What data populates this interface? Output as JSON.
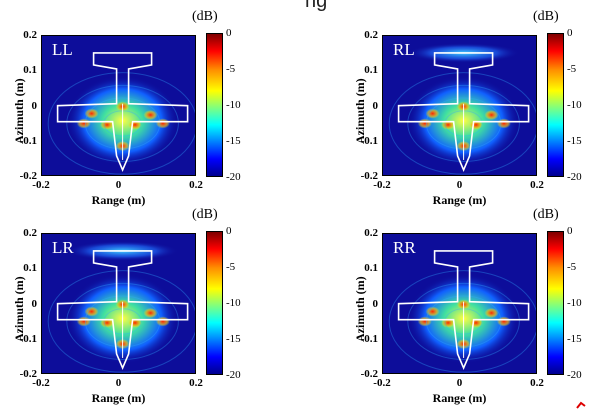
{
  "top_fragment": "ng",
  "chart_data": [
    {
      "type": "heatmap",
      "title": "LL",
      "xlabel": "Range (m)",
      "ylabel": "Azimuth (m)",
      "xlim": [
        -0.2,
        0.2
      ],
      "ylim": [
        -0.2,
        0.2
      ],
      "x_ticks": [
        "-0.2",
        "0",
        "0.2"
      ],
      "y_ticks": [
        "0.2",
        "0.1",
        "0",
        "-0.1",
        "-0.2"
      ],
      "colorbar": {
        "unit": "(dB)",
        "ticks": [
          "0",
          "-5",
          "-10",
          "-15",
          "-20"
        ],
        "range": [
          -20,
          0
        ]
      }
    },
    {
      "type": "heatmap",
      "title": "RL",
      "xlabel": "Range (m)",
      "ylabel": "Azimuth (m)",
      "xlim": [
        -0.2,
        0.2
      ],
      "ylim": [
        -0.2,
        0.2
      ],
      "x_ticks": [
        "-0.2",
        "0",
        "0.2"
      ],
      "y_ticks": [
        "0.2",
        "0.1",
        "0",
        "-0.1",
        "-0.2"
      ],
      "colorbar": {
        "unit": "(dB)",
        "ticks": [
          "0",
          "-5",
          "-10",
          "-15",
          "-20"
        ],
        "range": [
          -20,
          0
        ]
      }
    },
    {
      "type": "heatmap",
      "title": "LR",
      "xlabel": "Range (m)",
      "ylabel": "Azimuth (m)",
      "xlim": [
        -0.2,
        0.2
      ],
      "ylim": [
        -0.2,
        0.2
      ],
      "x_ticks": [
        "-0.2",
        "0",
        "0.2"
      ],
      "y_ticks": [
        "0.2",
        "0.1",
        "0",
        "-0.1",
        "-0.2"
      ],
      "colorbar": {
        "unit": "(dB)",
        "ticks": [
          "0",
          "-5",
          "-10",
          "-15",
          "-20"
        ],
        "range": [
          -20,
          0
        ]
      }
    },
    {
      "type": "heatmap",
      "title": "RR",
      "xlabel": "Range (m)",
      "ylabel": "Azimuth (m)",
      "xlim": [
        -0.2,
        0.2
      ],
      "ylim": [
        -0.2,
        0.2
      ],
      "x_ticks": [
        "-0.2",
        "0",
        "0.2"
      ],
      "y_ticks": [
        "0.2",
        "0.1",
        "0",
        "-0.1",
        "-0.2"
      ],
      "colorbar": {
        "unit": "(dB)",
        "ticks": [
          "0",
          "-5",
          "-10",
          "-15",
          "-20"
        ],
        "range": [
          -20,
          0
        ]
      }
    }
  ]
}
